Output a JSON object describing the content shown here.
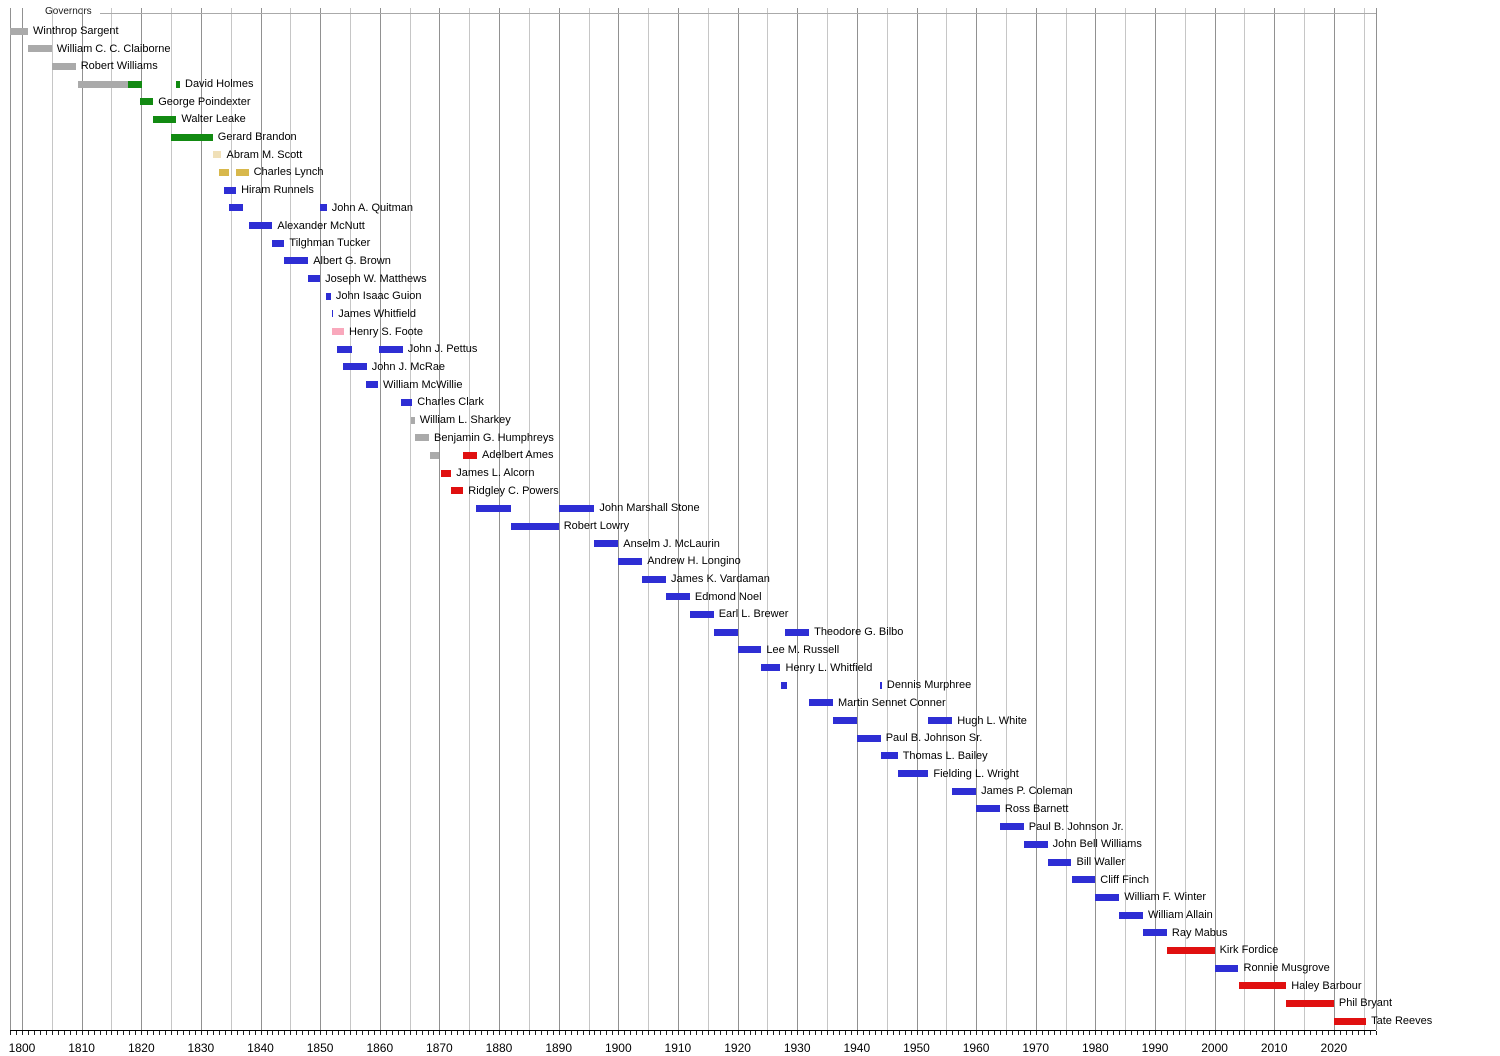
{
  "title": "Governors",
  "colors": {
    "gray": "#aaaaaa",
    "green": "#128a12",
    "blue": "#2e2ed4",
    "red": "#e01010",
    "pink": "#f9a8bc",
    "cream": "#f0e0b8",
    "gold": "#d8b84c"
  },
  "chart_data": {
    "type": "gantt",
    "title": "Governors",
    "x_axis": {
      "start": 1798,
      "end": 2027,
      "gridline_step_years": 5,
      "tick_step_years": 1,
      "decade_labels": [
        1800,
        1810,
        1820,
        1830,
        1840,
        1850,
        1860,
        1870,
        1880,
        1890,
        1900,
        1910,
        1920,
        1930,
        1940,
        1950,
        1960,
        1970,
        1980,
        1990,
        2000,
        2010,
        2020
      ]
    },
    "grid": {
      "major_color": "#919191",
      "minor_color": "#c6c6c6"
    },
    "governors": [
      {
        "name": "Winthrop Sargent",
        "terms": [
          [
            1798.0,
            1801.0,
            "gray"
          ]
        ]
      },
      {
        "name": "William C. C. Claiborne",
        "terms": [
          [
            1801.0,
            1805.0,
            "gray"
          ]
        ]
      },
      {
        "name": "Robert Williams",
        "terms": [
          [
            1805.0,
            1809.0,
            "gray"
          ]
        ]
      },
      {
        "name": "David Holmes",
        "terms": [
          [
            1809.3,
            1817.8,
            "gray"
          ],
          [
            1817.8,
            1820.1,
            "green"
          ],
          [
            1825.9,
            1826.5,
            "green"
          ]
        ]
      },
      {
        "name": "George Poindexter",
        "terms": [
          [
            1819.7,
            1822.0,
            "green"
          ]
        ]
      },
      {
        "name": "Walter Leake",
        "terms": [
          [
            1822.0,
            1825.9,
            "green"
          ]
        ]
      },
      {
        "name": "Gerard Brandon",
        "terms": [
          [
            1825.0,
            1832.0,
            "green"
          ]
        ]
      },
      {
        "name": "Abram M. Scott",
        "terms": [
          [
            1832.0,
            1833.45,
            "cream"
          ]
        ]
      },
      {
        "name": "Charles Lynch",
        "terms": [
          [
            1833.0,
            1834.65,
            "gold"
          ],
          [
            1835.9,
            1838.0,
            "gold"
          ]
        ]
      },
      {
        "name": "Hiram Runnels",
        "terms": [
          [
            1833.9,
            1835.9,
            "blue"
          ]
        ]
      },
      {
        "name": "John A. Quitman",
        "terms": [
          [
            1834.75,
            1837.05,
            "blue"
          ],
          [
            1849.95,
            1851.1,
            "blue"
          ]
        ]
      },
      {
        "name": "Alexander McNutt",
        "terms": [
          [
            1838.0,
            1842.0,
            "blue"
          ]
        ]
      },
      {
        "name": "Tilghman Tucker",
        "terms": [
          [
            1842.0,
            1844.0,
            "blue"
          ]
        ]
      },
      {
        "name": "Albert G. Brown",
        "terms": [
          [
            1844.0,
            1848.0,
            "blue"
          ]
        ]
      },
      {
        "name": "Joseph W. Matthews",
        "terms": [
          [
            1848.0,
            1850.0,
            "blue"
          ]
        ]
      },
      {
        "name": "John Isaac Guion",
        "terms": [
          [
            1851.05,
            1851.8,
            "blue"
          ]
        ]
      },
      {
        "name": "James Whitfield",
        "terms": [
          [
            1851.9,
            1852.2,
            "blue"
          ]
        ]
      },
      {
        "name": "Henry S. Foote",
        "terms": [
          [
            1852.0,
            1854.0,
            "pink"
          ]
        ]
      },
      {
        "name": "John J. Pettus",
        "terms": [
          [
            1852.85,
            1855.35,
            "blue"
          ],
          [
            1859.85,
            1863.85,
            "blue"
          ]
        ]
      },
      {
        "name": "John J. McRae",
        "terms": [
          [
            1853.9,
            1857.8,
            "blue"
          ]
        ]
      },
      {
        "name": "William McWillie",
        "terms": [
          [
            1857.65,
            1859.7,
            "blue"
          ]
        ]
      },
      {
        "name": "Charles Clark",
        "terms": [
          [
            1863.55,
            1865.45,
            "blue"
          ]
        ]
      },
      {
        "name": "William L. Sharkey",
        "terms": [
          [
            1865.3,
            1865.85,
            "gray"
          ]
        ]
      },
      {
        "name": "Benjamin G. Humphreys",
        "terms": [
          [
            1865.85,
            1868.25,
            "gray"
          ]
        ]
      },
      {
        "name": "Adelbert Ames",
        "terms": [
          [
            1868.4,
            1870.0,
            "gray"
          ],
          [
            1873.95,
            1876.3,
            "red"
          ]
        ]
      },
      {
        "name": "James L. Alcorn",
        "terms": [
          [
            1870.2,
            1872.0,
            "red"
          ]
        ]
      },
      {
        "name": "Ridgley C. Powers",
        "terms": [
          [
            1871.95,
            1874.0,
            "red"
          ]
        ]
      },
      {
        "name": "John Marshall Stone",
        "terms": [
          [
            1876.1,
            1882.0,
            "blue"
          ],
          [
            1890.0,
            1896.0,
            "blue"
          ]
        ]
      },
      {
        "name": "Robert Lowry",
        "terms": [
          [
            1882.0,
            1890.0,
            "blue"
          ]
        ]
      },
      {
        "name": "Anselm J. McLaurin",
        "terms": [
          [
            1896.0,
            1900.0,
            "blue"
          ]
        ]
      },
      {
        "name": "Andrew H. Longino",
        "terms": [
          [
            1900.0,
            1904.0,
            "blue"
          ]
        ]
      },
      {
        "name": "James K. Vardaman",
        "terms": [
          [
            1904.0,
            1908.0,
            "blue"
          ]
        ]
      },
      {
        "name": "Edmond Noel",
        "terms": [
          [
            1908.0,
            1912.0,
            "blue"
          ]
        ]
      },
      {
        "name": "Earl L. Brewer",
        "terms": [
          [
            1912.0,
            1916.0,
            "blue"
          ]
        ]
      },
      {
        "name": "Theodore G. Bilbo",
        "terms": [
          [
            1916.0,
            1920.0,
            "blue"
          ],
          [
            1928.0,
            1932.0,
            "blue"
          ]
        ]
      },
      {
        "name": "Lee M. Russell",
        "terms": [
          [
            1920.0,
            1924.0,
            "blue"
          ]
        ]
      },
      {
        "name": "Henry L. Whitfield",
        "terms": [
          [
            1924.0,
            1927.2,
            "blue"
          ]
        ]
      },
      {
        "name": "Dennis Murphree",
        "terms": [
          [
            1927.2,
            1928.2,
            "blue"
          ],
          [
            1943.9,
            1944.2,
            "blue"
          ]
        ]
      },
      {
        "name": "Martin Sennet Conner",
        "terms": [
          [
            1932.0,
            1936.0,
            "blue"
          ]
        ]
      },
      {
        "name": "Hugh L. White",
        "terms": [
          [
            1936.0,
            1940.0,
            "blue"
          ],
          [
            1952.0,
            1956.0,
            "blue"
          ]
        ]
      },
      {
        "name": "Paul B. Johnson Sr.",
        "terms": [
          [
            1940.0,
            1944.0,
            "blue"
          ]
        ]
      },
      {
        "name": "Thomas L. Bailey",
        "terms": [
          [
            1944.0,
            1946.85,
            "blue"
          ]
        ]
      },
      {
        "name": "Fielding L. Wright",
        "terms": [
          [
            1946.85,
            1952.0,
            "blue"
          ]
        ]
      },
      {
        "name": "James P. Coleman",
        "terms": [
          [
            1956.0,
            1960.0,
            "blue"
          ]
        ]
      },
      {
        "name": "Ross Barnett",
        "terms": [
          [
            1960.0,
            1964.0,
            "blue"
          ]
        ]
      },
      {
        "name": "Paul B. Johnson Jr.",
        "terms": [
          [
            1964.0,
            1968.0,
            "blue"
          ]
        ]
      },
      {
        "name": "John Bell Williams",
        "terms": [
          [
            1968.0,
            1972.0,
            "blue"
          ]
        ]
      },
      {
        "name": "Bill Waller",
        "terms": [
          [
            1972.0,
            1976.0,
            "blue"
          ]
        ]
      },
      {
        "name": "Cliff Finch",
        "terms": [
          [
            1976.0,
            1980.0,
            "blue"
          ]
        ]
      },
      {
        "name": "William F. Winter",
        "terms": [
          [
            1980.0,
            1984.0,
            "blue"
          ]
        ]
      },
      {
        "name": "William Allain",
        "terms": [
          [
            1984.0,
            1988.0,
            "blue"
          ]
        ]
      },
      {
        "name": "Ray Mabus",
        "terms": [
          [
            1988.0,
            1992.0,
            "blue"
          ]
        ]
      },
      {
        "name": "Kirk Fordice",
        "terms": [
          [
            1992.0,
            2000.0,
            "red"
          ]
        ]
      },
      {
        "name": "Ronnie Musgrove",
        "terms": [
          [
            2000.0,
            2004.0,
            "blue"
          ]
        ]
      },
      {
        "name": "Haley Barbour",
        "terms": [
          [
            2004.0,
            2012.0,
            "red"
          ]
        ]
      },
      {
        "name": "Phil Bryant",
        "terms": [
          [
            2012.0,
            2020.0,
            "red"
          ]
        ]
      },
      {
        "name": "Tate Reeves",
        "terms": [
          [
            2020.0,
            2025.4,
            "red"
          ]
        ]
      }
    ]
  }
}
